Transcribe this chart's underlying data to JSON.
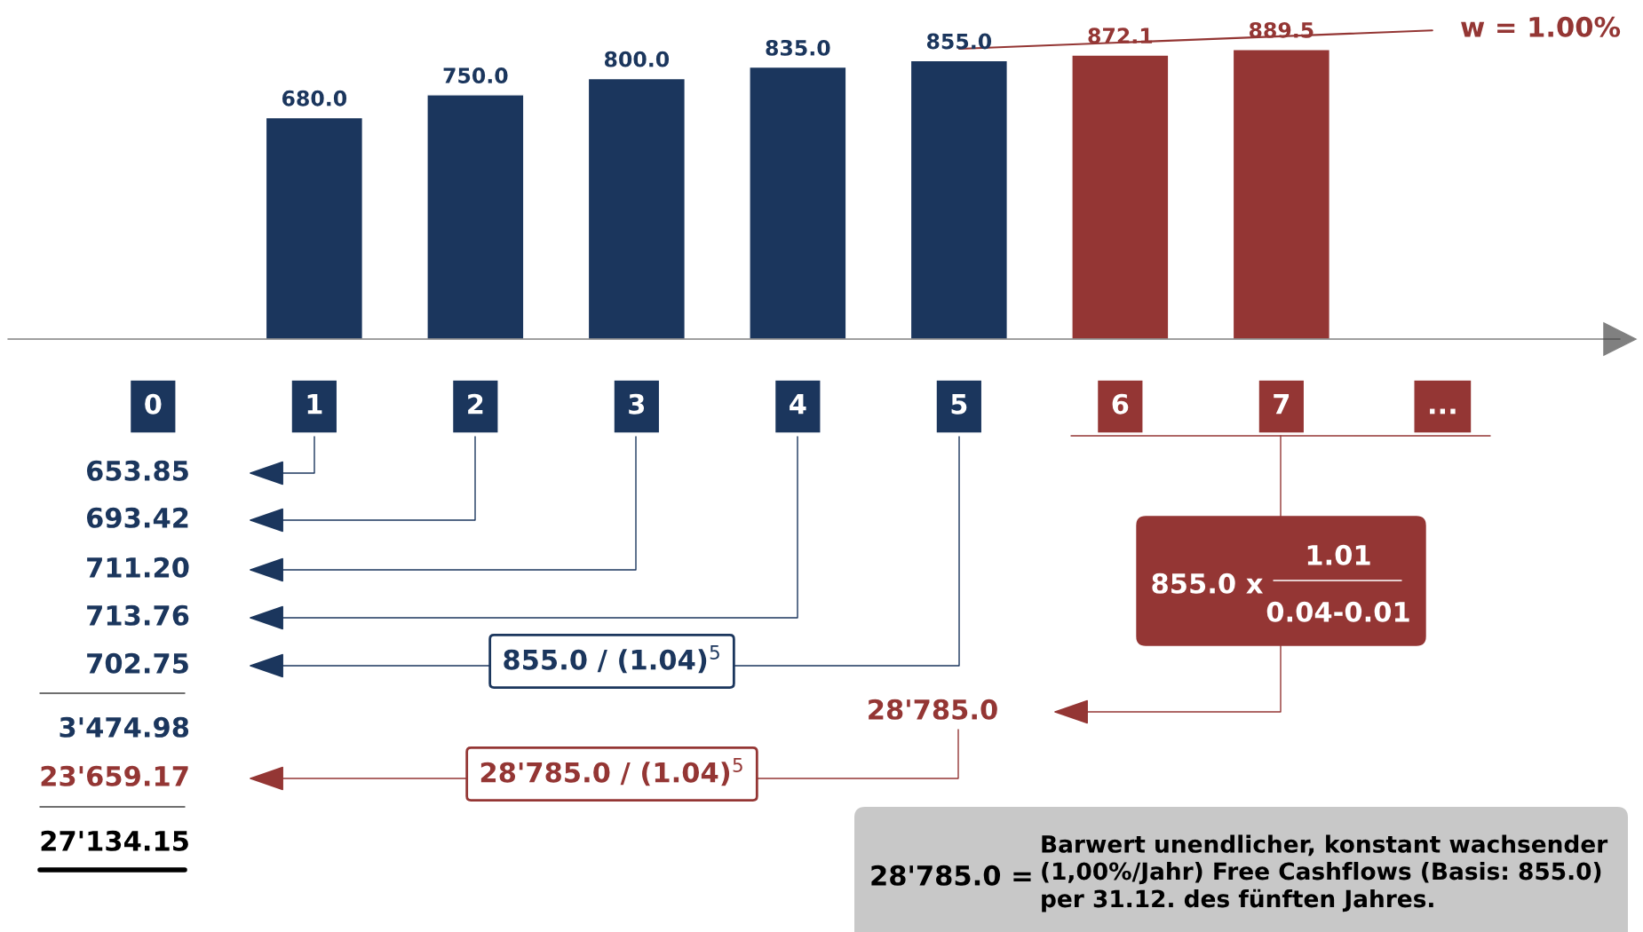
{
  "chart_data": {
    "type": "bar",
    "categories": [
      "0",
      "1",
      "2",
      "3",
      "4",
      "5",
      "6",
      "7",
      "..."
    ],
    "values": [
      null,
      680.0,
      750.0,
      800.0,
      835.0,
      855.0,
      872.1,
      889.5,
      null
    ],
    "colors": [
      "#1b365d",
      "#1b365d",
      "#1b365d",
      "#1b365d",
      "#1b365d",
      "#1b365d",
      "#943634",
      "#943634",
      "#943634"
    ],
    "value_labels": [
      null,
      "680.0",
      "750.0",
      "800.0",
      "835.0",
      "855.0",
      "872.1",
      "889.5",
      null
    ],
    "grid": false,
    "annotations": [
      "w = 1.00%",
      "653.85",
      "693.42",
      "711.20",
      "713.76",
      "702.75",
      "3'474.98",
      "23'659.17",
      "27'134.15",
      "855.0 / (1.04)$^{5}$",
      "28'785.0 / (1.04)$^{5}$",
      "28'785.0",
      "855.0 x",
      "1.01",
      "0.04-0.01",
      "28'785.0 =",
      "Barwert unendlicher, konstant wachsender\n(1,00%/Jahr) Free Cashflows (Basis: 855.0)\nper 31.12. des fünften Jahres."
    ]
  }
}
